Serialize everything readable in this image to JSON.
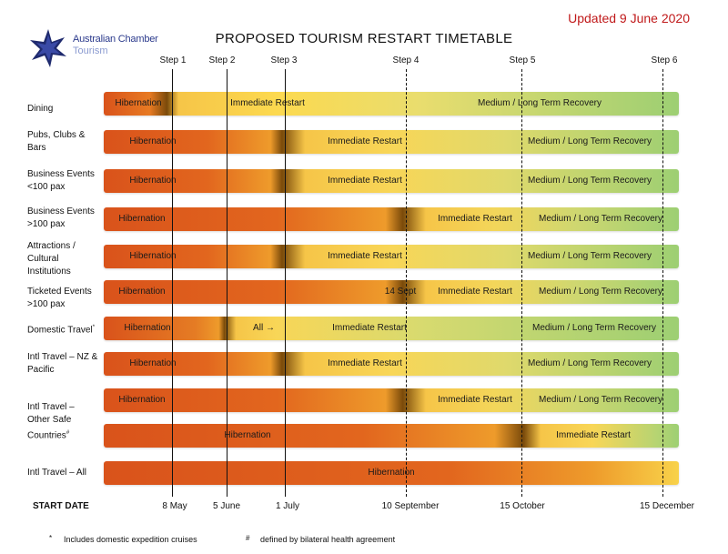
{
  "header": {
    "org_name": "Australian Chamber",
    "org_sub": "Tourism",
    "updated": "Updated 9 June 2020",
    "title": "PROPOSED TOURISM RESTART TIMETABLE"
  },
  "colors": {
    "hibernation": "#d9531b",
    "transition": "#ea9a2a",
    "restart": "#f8d24a",
    "recovery": "#9dcf73",
    "dark_band": "#7a4a0a"
  },
  "steps": [
    "Step 1",
    "Step 2",
    "Step 3",
    "Step 4",
    "Step 5",
    "Step 6"
  ],
  "start_date_label": "START DATE",
  "dates": [
    "8 May",
    "5 June",
    "1 July",
    "10 September",
    "15 October",
    "15 December"
  ],
  "rows": [
    {
      "label": "Dining",
      "superscript": "",
      "bars": [
        {
          "texts": [
            "Hibernation",
            "Immediate Restart",
            "Medium / Long Term Recovery"
          ]
        }
      ]
    },
    {
      "label": "Pubs, Clubs & Bars",
      "superscript": "",
      "bars": [
        {
          "texts": [
            "Hibernation",
            "Immediate Restart",
            "Medium / Long Term Recovery"
          ]
        }
      ]
    },
    {
      "label": "Business Events <100 pax",
      "superscript": "",
      "bars": [
        {
          "texts": [
            "Hibernation",
            "Immediate Restart",
            "Medium / Long Term Recovery"
          ]
        }
      ]
    },
    {
      "label": "Business Events >100 pax",
      "superscript": "",
      "bars": [
        {
          "texts": [
            "Hibernation",
            "Immediate Restart",
            "Medium / Long Term Recovery"
          ]
        }
      ]
    },
    {
      "label": "Attractions / Cultural Institutions",
      "superscript": "",
      "bars": [
        {
          "texts": [
            "Hibernation",
            "Immediate Restart",
            "Medium / Long Term Recovery"
          ]
        }
      ]
    },
    {
      "label": "Ticketed Events >100 pax",
      "superscript": "",
      "bars": [
        {
          "texts": [
            "Hibernation",
            "14 Sept",
            "Immediate Restart",
            "Medium / Long Term Recovery"
          ]
        }
      ]
    },
    {
      "label": "Domestic Travel",
      "superscript": "*",
      "bars": [
        {
          "texts": [
            "Hibernation",
            "All →",
            "Immediate Restart",
            "Medium / Long Term Recovery"
          ]
        }
      ]
    },
    {
      "label": "Intl Travel – NZ & Pacific",
      "superscript": "",
      "bars": [
        {
          "texts": [
            "Hibernation",
            "Immediate Restart",
            "Medium / Long Term Recovery"
          ]
        }
      ]
    },
    {
      "label": "Intl Travel – Other Safe Countries",
      "superscript": "#",
      "bars": [
        {
          "texts": [
            "Hibernation",
            "Immediate Restart",
            "Medium / Long Term Recovery"
          ]
        },
        {
          "texts": [
            "Hibernation",
            "Immediate Restart"
          ]
        }
      ]
    },
    {
      "label": "Intl Travel – All",
      "superscript": "",
      "bars": [
        {
          "texts": [
            "Hibernation"
          ]
        }
      ]
    }
  ],
  "footnotes": [
    {
      "mark": "*",
      "text": "Includes domestic expedition cruises"
    },
    {
      "mark": "#",
      "text": "defined by bilateral health agreement"
    }
  ]
}
